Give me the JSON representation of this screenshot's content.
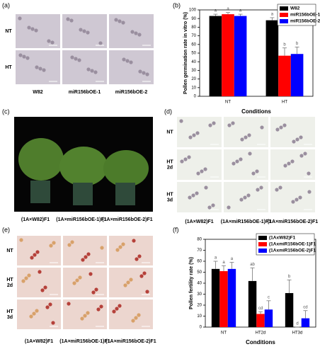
{
  "panels": {
    "a": {
      "label": "(a)",
      "rows": [
        "NT",
        "HT"
      ],
      "columns": [
        "W82",
        "miR156bOE-1",
        "miR156bOE-2"
      ]
    },
    "b": {
      "label": "(b)"
    },
    "c": {
      "label": "(c)",
      "captions": [
        "(1A×W82)F1",
        "(1A×miR156bOE-1)F1",
        "(1A×miR156bOE-2)F1"
      ]
    },
    "d": {
      "label": "(d)",
      "rows": [
        "NT",
        "HT 2d",
        "HT 3d"
      ],
      "captions": [
        "(1A×W82)F1",
        "(1A×miR156bOE-1)F1",
        "(1A×miR156bOE-2)F1"
      ]
    },
    "e": {
      "label": "(e)",
      "rows": [
        "NT",
        "HT 2d",
        "HT 3d"
      ],
      "captions": [
        "(1A×W82)F1",
        "(1A×miR156bOE-1)F1",
        "(1A×miR156bOE-2)F1"
      ]
    },
    "f": {
      "label": "(f)"
    }
  },
  "chart_data": [
    {
      "type": "bar",
      "ylabel": "Pollen germination rate in vitro (%)",
      "xlabel": "Conditions",
      "categories": [
        "NT",
        "HT"
      ],
      "ylim": [
        0,
        100
      ],
      "yticks": [
        0,
        10,
        20,
        30,
        40,
        50,
        60,
        70,
        80,
        90,
        100
      ],
      "legend": "upper right",
      "series": [
        {
          "name": "W82",
          "color": "#000000",
          "values": [
            93,
            88
          ],
          "errors": [
            2,
            3
          ],
          "letters": [
            "a",
            "a"
          ]
        },
        {
          "name": "miR156bOE-1",
          "color": "#ff0000",
          "values": [
            95,
            47
          ],
          "errors": [
            2,
            9
          ],
          "letters": [
            "a",
            "b"
          ]
        },
        {
          "name": "miR156bOE-2",
          "color": "#0000ff",
          "values": [
            93,
            49
          ],
          "errors": [
            2,
            8
          ],
          "letters": [
            "a",
            "b"
          ]
        }
      ]
    },
    {
      "type": "bar",
      "ylabel": "Pollen fertility rate (%)",
      "xlabel": "Conditions",
      "categories": [
        "NT",
        "HT2d",
        "HT3d"
      ],
      "ylim": [
        0,
        80
      ],
      "yticks": [
        0,
        10,
        20,
        30,
        40,
        50,
        60,
        70,
        80
      ],
      "legend": "upper right",
      "series": [
        {
          "name": "(1AxW82)F1",
          "color": "#000000",
          "values": [
            53,
            42,
            31
          ],
          "errors": [
            7,
            12,
            12
          ],
          "letters": [
            "a",
            "ab",
            "b"
          ]
        },
        {
          "name": "(1AxmiR156bOE-1)F1",
          "color": "#ff0000",
          "values": [
            51,
            12,
            0
          ],
          "errors": [
            5,
            2,
            0
          ],
          "letters": [
            "a",
            "cd",
            "d"
          ]
        },
        {
          "name": "(1AxmiR156bOE-2)F1",
          "color": "#0000ff",
          "values": [
            53,
            16,
            8
          ],
          "errors": [
            6,
            8,
            7
          ],
          "letters": [
            "a",
            "c",
            "cd"
          ]
        }
      ]
    }
  ]
}
